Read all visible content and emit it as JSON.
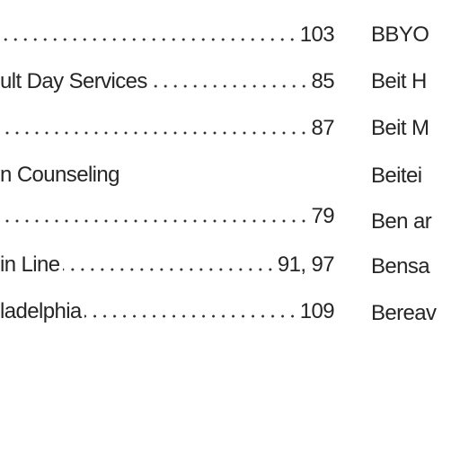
{
  "left_entries": [
    {
      "page": "103"
    },
    {
      "text": "ult Day Services",
      "page": "85"
    },
    {
      "page": "87"
    },
    {
      "text": "n Counseling"
    },
    {
      "page": "79"
    },
    {
      "text": "in Line",
      "page": "91, 97"
    },
    {
      "text": "ladelphia",
      "page": "109"
    }
  ],
  "right_entries": [
    "BBYO",
    "Beit H",
    "Beit M",
    "Beitei",
    "Ben ar",
    "Bensa",
    "Bereav"
  ]
}
